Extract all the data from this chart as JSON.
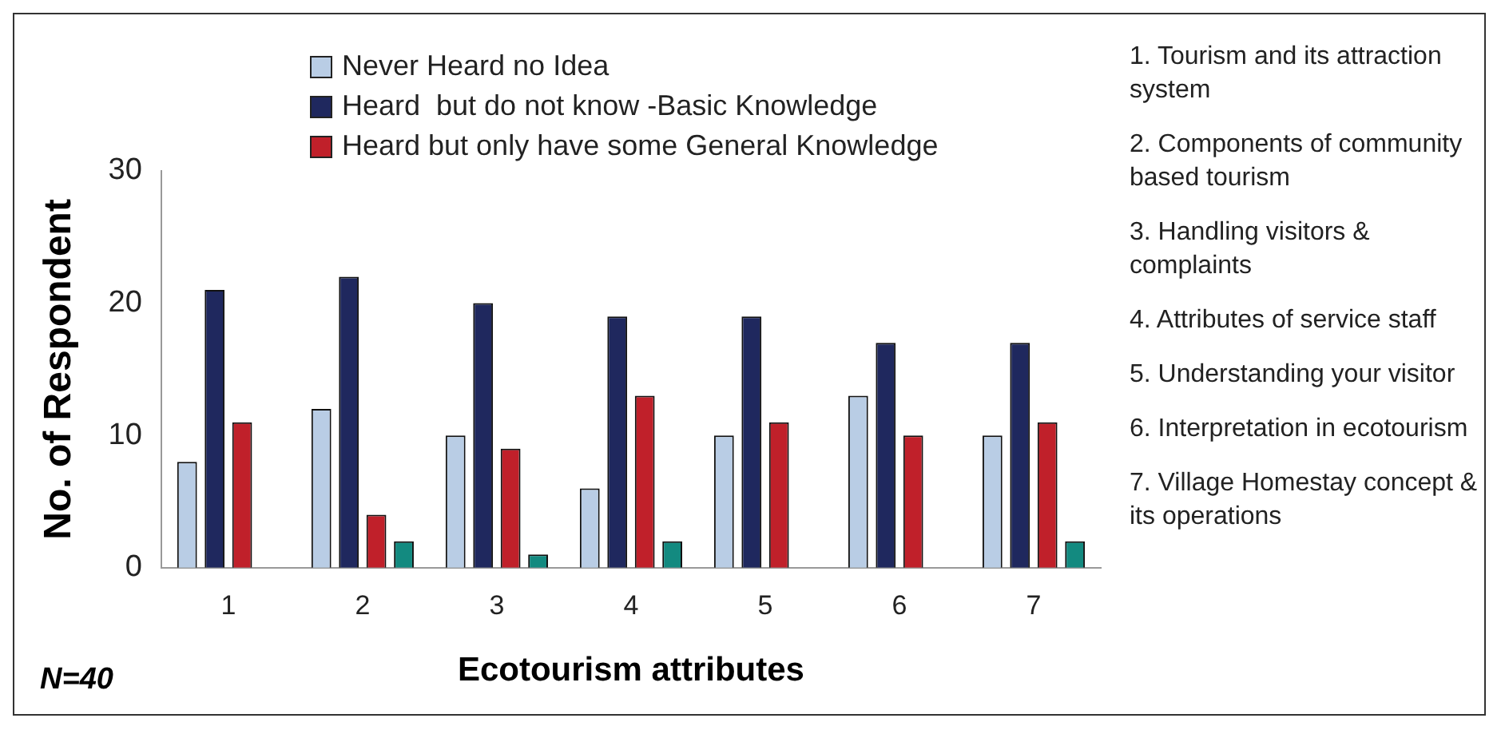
{
  "chart_data": {
    "type": "bar",
    "xlabel": "Ecotourism attributes",
    "ylabel": "No. of Respondent",
    "categories": [
      "1",
      "2",
      "3",
      "4",
      "5",
      "6",
      "7"
    ],
    "series": [
      {
        "name": "Never Heard no Idea",
        "color": "#b9cde5",
        "values": [
          8,
          12,
          10,
          6,
          10,
          13,
          10
        ]
      },
      {
        "name": "Heard  but do not know -Basic Knowledge",
        "color": "#1f285e",
        "values": [
          21,
          22,
          20,
          19,
          19,
          17,
          17
        ]
      },
      {
        "name": "Heard but only have some General Knowledge",
        "color": "#c0202a",
        "values": [
          11,
          4,
          9,
          13,
          11,
          10,
          11
        ]
      },
      {
        "color": "#138a80",
        "values": [
          0,
          2,
          1,
          2,
          0,
          0,
          2
        ]
      }
    ],
    "ylim": [
      0,
      30
    ],
    "yticks": [
      0,
      10,
      20,
      30
    ],
    "grid": false,
    "legend": "top",
    "annotations": [
      "1. Tourism and its attraction system",
      "2. Components of community based tourism",
      "3. Handling visitors & complaints",
      "4. Attributes of service staff",
      "5. Understanding your visitor",
      "6. Interpretation in ecotourism",
      "7. Village Homestay concept & its operations",
      "N=40"
    ]
  }
}
